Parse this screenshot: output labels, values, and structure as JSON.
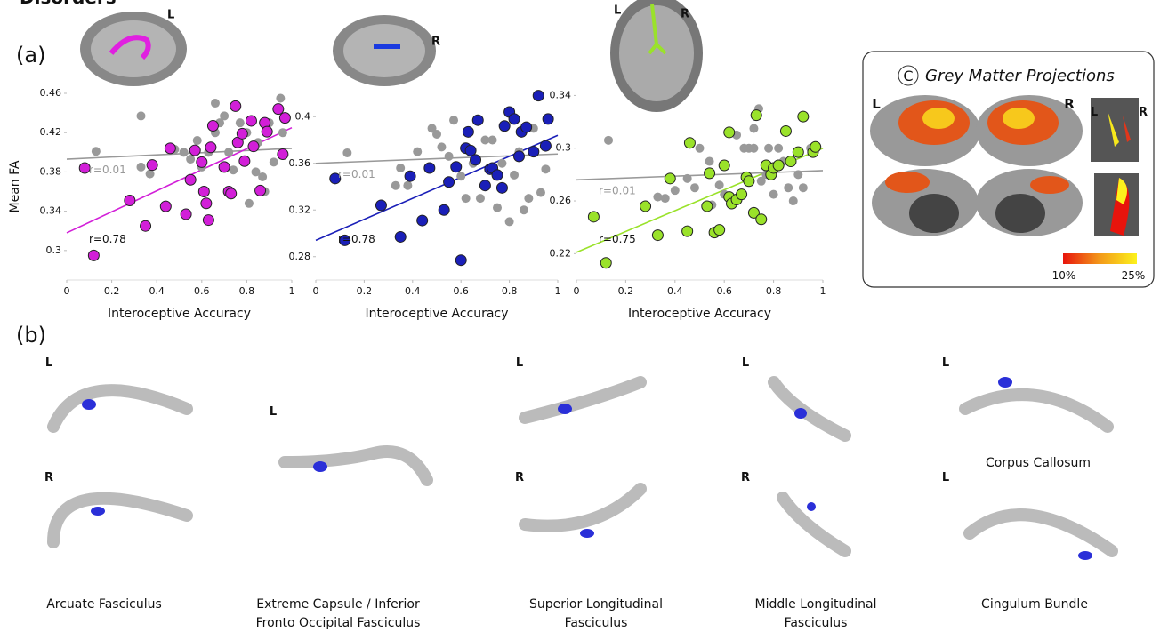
{
  "header": {
    "title": "Disorders"
  },
  "panel_labels": [
    "(a)",
    "(b)"
  ],
  "chart_data": [
    {
      "type": "scatter",
      "hemisphere_labels": [
        "L"
      ],
      "x_label": "Interoceptive Accuracy",
      "y_label": "Mean FA",
      "xlim": [
        0,
        1
      ],
      "xticks": [
        0,
        0.2,
        0.4,
        0.6,
        0.8,
        1
      ],
      "ylim": [
        0.27,
        0.46
      ],
      "yticks": [
        0.3,
        0.34,
        0.38,
        0.42,
        0.46
      ],
      "annotations": [
        "r=0.78",
        "r=0.01"
      ],
      "series": [
        {
          "color": "#999999",
          "x": [
            0.13,
            0.33,
            0.33,
            0.37,
            0.48,
            0.52,
            0.55,
            0.58,
            0.6,
            0.63,
            0.66,
            0.68,
            0.7,
            0.72,
            0.74,
            0.77,
            0.8,
            0.81,
            0.84,
            0.85,
            0.87,
            0.9,
            0.92,
            0.95,
            0.96,
            0.88,
            0.66
          ],
          "values": [
            0.401,
            0.437,
            0.385,
            0.378,
            0.403,
            0.4,
            0.393,
            0.412,
            0.385,
            0.4,
            0.42,
            0.43,
            0.437,
            0.4,
            0.382,
            0.43,
            0.42,
            0.348,
            0.38,
            0.41,
            0.375,
            0.43,
            0.39,
            0.455,
            0.42,
            0.36,
            0.45
          ],
          "fit": {
            "x": [
              0,
              1
            ],
            "values": [
              0.393,
              0.404
            ]
          }
        },
        {
          "color": "#d21fd8",
          "x": [
            0.08,
            0.12,
            0.28,
            0.35,
            0.38,
            0.44,
            0.46,
            0.53,
            0.55,
            0.57,
            0.6,
            0.61,
            0.62,
            0.63,
            0.64,
            0.65,
            0.7,
            0.72,
            0.73,
            0.75,
            0.76,
            0.78,
            0.79,
            0.82,
            0.83,
            0.86,
            0.88,
            0.89,
            0.94,
            0.96,
            0.97
          ],
          "values": [
            0.384,
            0.295,
            0.351,
            0.325,
            0.387,
            0.345,
            0.404,
            0.337,
            0.372,
            0.402,
            0.39,
            0.36,
            0.348,
            0.331,
            0.405,
            0.427,
            0.385,
            0.36,
            0.358,
            0.447,
            0.41,
            0.419,
            0.391,
            0.432,
            0.406,
            0.361,
            0.43,
            0.421,
            0.444,
            0.398,
            0.435
          ],
          "fit": {
            "x": [
              0,
              1
            ],
            "values": [
              0.318,
              0.425
            ]
          }
        }
      ]
    },
    {
      "type": "scatter",
      "hemisphere_labels": [
        "R"
      ],
      "x_label": "Interoceptive Accuracy",
      "xlim": [
        0,
        1
      ],
      "xticks": [
        0,
        0.2,
        0.4,
        0.6,
        0.8,
        1
      ],
      "ylim": [
        0.26,
        0.42
      ],
      "yticks": [
        0.28,
        0.32,
        0.36,
        0.4
      ],
      "annotations": [
        "r=0.78",
        "r=0.01"
      ],
      "series": [
        {
          "color": "#999999",
          "x": [
            0.13,
            0.33,
            0.35,
            0.38,
            0.42,
            0.48,
            0.5,
            0.52,
            0.55,
            0.57,
            0.6,
            0.62,
            0.65,
            0.68,
            0.7,
            0.73,
            0.75,
            0.77,
            0.8,
            0.82,
            0.84,
            0.86,
            0.88,
            0.9,
            0.93,
            0.95
          ],
          "values": [
            0.369,
            0.341,
            0.356,
            0.341,
            0.37,
            0.39,
            0.385,
            0.374,
            0.366,
            0.397,
            0.349,
            0.33,
            0.36,
            0.33,
            0.38,
            0.38,
            0.322,
            0.36,
            0.31,
            0.35,
            0.37,
            0.32,
            0.33,
            0.39,
            0.335,
            0.355
          ],
          "fit": {
            "x": [
              0,
              1
            ],
            "values": [
              0.36,
              0.368
            ]
          }
        },
        {
          "color": "#1a1fb8",
          "x": [
            0.08,
            0.12,
            0.27,
            0.35,
            0.39,
            0.44,
            0.47,
            0.53,
            0.55,
            0.58,
            0.6,
            0.62,
            0.63,
            0.64,
            0.66,
            0.67,
            0.7,
            0.72,
            0.73,
            0.75,
            0.77,
            0.78,
            0.8,
            0.82,
            0.84,
            0.85,
            0.87,
            0.9,
            0.92,
            0.95,
            0.96
          ],
          "values": [
            0.347,
            0.294,
            0.324,
            0.297,
            0.349,
            0.311,
            0.356,
            0.32,
            0.344,
            0.357,
            0.277,
            0.373,
            0.387,
            0.371,
            0.363,
            0.397,
            0.341,
            0.355,
            0.356,
            0.35,
            0.339,
            0.392,
            0.404,
            0.398,
            0.366,
            0.387,
            0.391,
            0.37,
            0.418,
            0.375,
            0.398
          ],
          "fit": {
            "x": [
              0,
              1
            ],
            "values": [
              0.294,
              0.384
            ]
          }
        }
      ]
    },
    {
      "type": "scatter",
      "hemisphere_labels": [
        "L",
        "R"
      ],
      "x_label": "Interoceptive Accuracy",
      "xlim": [
        0,
        1
      ],
      "xticks": [
        0,
        0.2,
        0.4,
        0.6,
        0.8,
        1
      ],
      "ylim": [
        0.2,
        0.345
      ],
      "yticks": [
        0.22,
        0.26,
        0.3,
        0.34
      ],
      "annotations": [
        "r=0.75",
        "r=0.01"
      ],
      "series": [
        {
          "color": "#999999",
          "x": [
            0.13,
            0.33,
            0.36,
            0.4,
            0.45,
            0.48,
            0.5,
            0.54,
            0.58,
            0.6,
            0.65,
            0.68,
            0.7,
            0.72,
            0.74,
            0.75,
            0.77,
            0.78,
            0.8,
            0.82,
            0.84,
            0.86,
            0.88,
            0.9,
            0.92,
            0.95,
            0.72,
            0.55
          ],
          "values": [
            0.306,
            0.263,
            0.262,
            0.268,
            0.277,
            0.27,
            0.3,
            0.29,
            0.272,
            0.265,
            0.31,
            0.3,
            0.3,
            0.315,
            0.33,
            0.275,
            0.28,
            0.3,
            0.265,
            0.3,
            0.29,
            0.27,
            0.26,
            0.28,
            0.27,
            0.3,
            0.3,
            0.257
          ],
          "fit": {
            "x": [
              0,
              1
            ],
            "values": [
              0.276,
              0.283
            ]
          }
        },
        {
          "color": "#9ae22a",
          "x": [
            0.07,
            0.12,
            0.28,
            0.33,
            0.38,
            0.45,
            0.46,
            0.53,
            0.54,
            0.56,
            0.58,
            0.6,
            0.62,
            0.62,
            0.63,
            0.65,
            0.67,
            0.69,
            0.7,
            0.72,
            0.73,
            0.75,
            0.77,
            0.79,
            0.8,
            0.82,
            0.85,
            0.87,
            0.9,
            0.92,
            0.96,
            0.97
          ],
          "values": [
            0.248,
            0.213,
            0.256,
            0.234,
            0.277,
            0.237,
            0.304,
            0.256,
            0.281,
            0.236,
            0.238,
            0.287,
            0.263,
            0.312,
            0.258,
            0.261,
            0.265,
            0.278,
            0.275,
            0.251,
            0.325,
            0.246,
            0.287,
            0.28,
            0.285,
            0.287,
            0.313,
            0.29,
            0.297,
            0.324,
            0.297,
            0.301
          ],
          "fit": {
            "x": [
              0,
              1
            ],
            "values": [
              0.221,
              0.3
            ]
          }
        }
      ]
    }
  ],
  "grey_matter": {
    "badge": "C",
    "title": "Grey Matter Projections",
    "hemisphere_labels": [
      "L",
      "R",
      "L",
      "R"
    ],
    "colorbar_labels": [
      "10%",
      "25%"
    ]
  },
  "tracts": {
    "side_labels": [
      "L",
      "R",
      "L",
      "L",
      "R",
      "L",
      "R",
      "L",
      "L"
    ],
    "names": [
      [
        "Arcuate Fasciculus"
      ],
      [
        "Extreme Capsule / Inferior",
        "Fronto Occipital Fasciculus"
      ],
      [
        "Superior Longitudinal",
        "Fasciculus"
      ],
      [
        "Middle Longitudinal",
        "Fasciculus"
      ],
      [
        "Cingulum Bundle"
      ],
      [
        "Corpus Callosum"
      ]
    ]
  }
}
